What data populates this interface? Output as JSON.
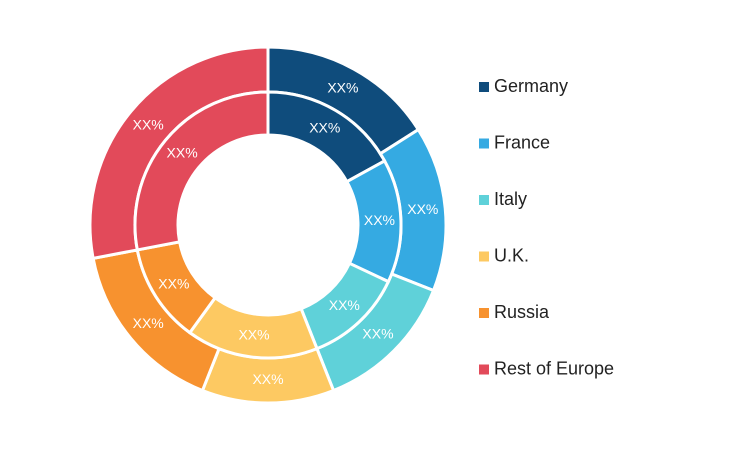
{
  "chart_data": {
    "type": "donut",
    "categories": [
      "Germany",
      "France",
      "Italy",
      "U.K.",
      "Russia",
      "Rest of Europe"
    ],
    "colors": [
      "#0f4c7c",
      "#35aae2",
      "#5fd1d9",
      "#fdc962",
      "#f7922f",
      "#e24a5a"
    ],
    "series": [
      {
        "values": [
          16,
          15,
          13,
          12,
          16,
          28
        ],
        "value_labels": [
          "XX%",
          "XX%",
          "XX%",
          "XX%",
          "XX%",
          "XX%"
        ]
      },
      {
        "values": [
          17,
          15,
          12,
          16,
          12,
          28
        ],
        "value_labels": [
          "XX%",
          "XX%",
          "XX%",
          "XX%",
          "XX%",
          "XX%"
        ]
      }
    ],
    "legend": "right"
  }
}
